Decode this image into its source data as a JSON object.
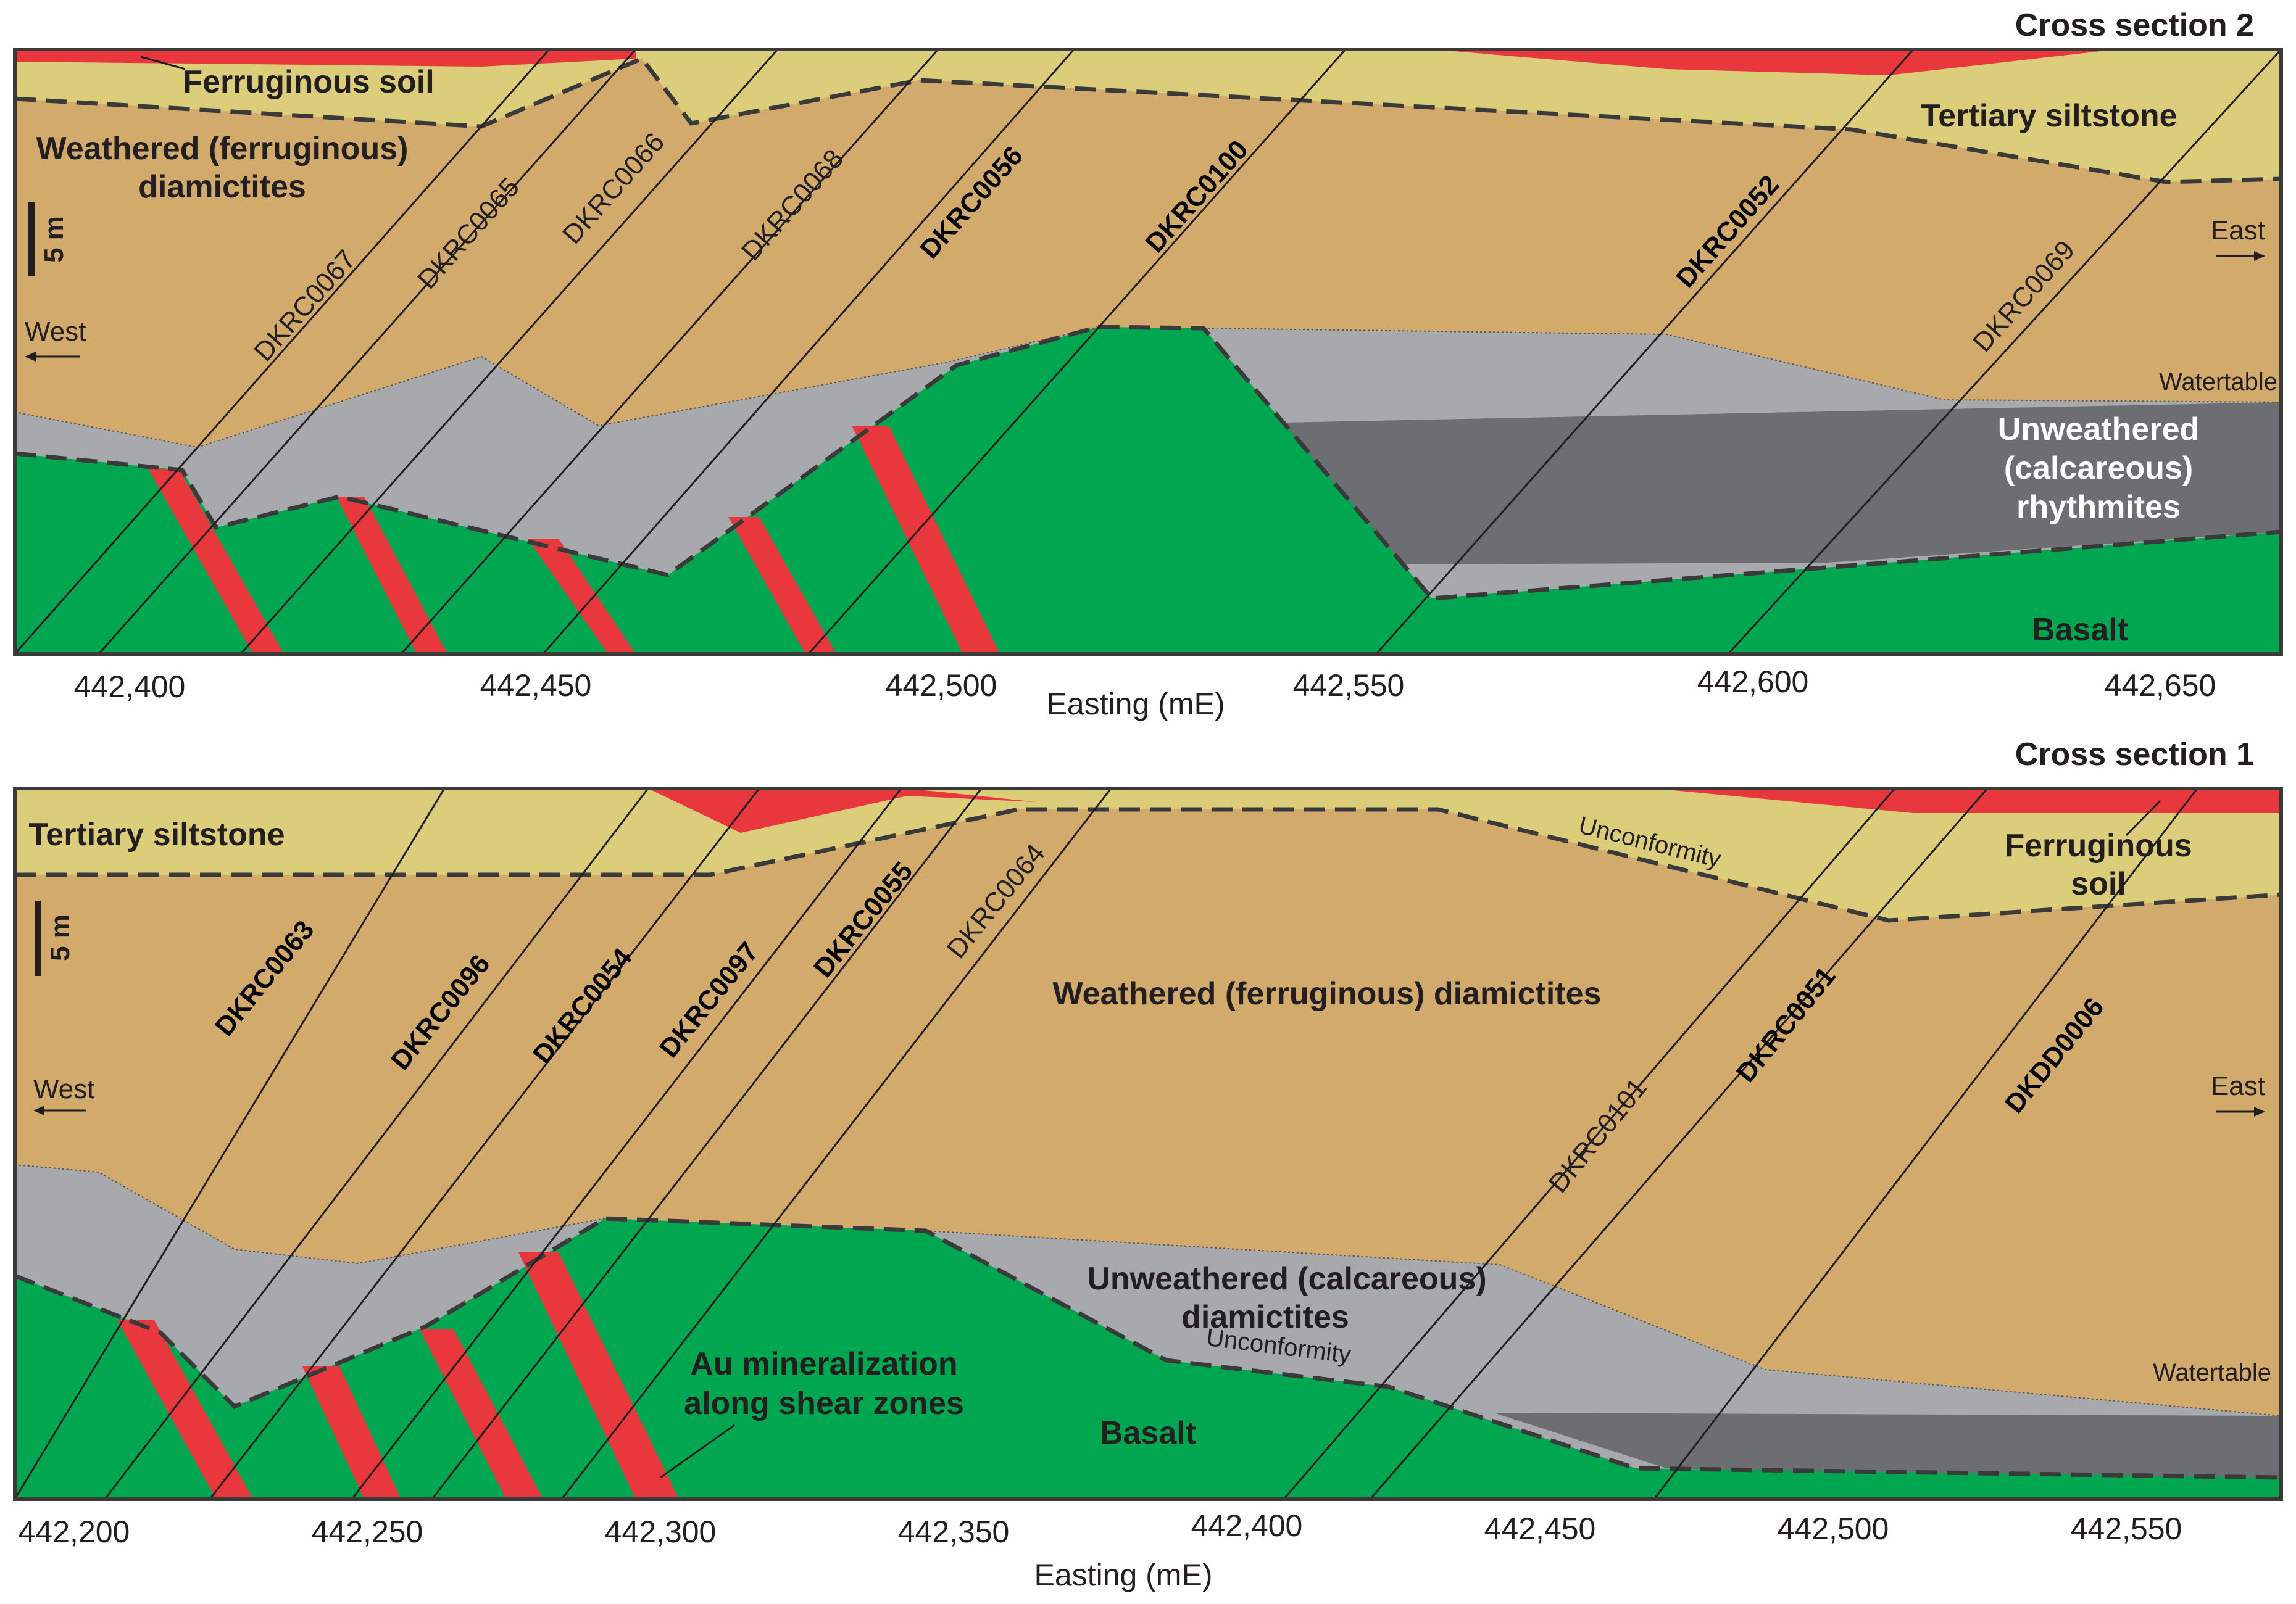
{
  "section2": {
    "title": "Cross section 2",
    "xaxis": {
      "label": "Easting (mE)",
      "ticks": [
        "442,400",
        "442,450",
        "442,500",
        "442,550",
        "442,600",
        "442,650"
      ]
    },
    "west": "West",
    "east": "East",
    "scale": "5 m",
    "units": {
      "ferruginous_soil": "Ferruginous soil",
      "tertiary_siltstone": "Tertiary siltstone",
      "weathered_1": "Weathered (ferruginous)",
      "weathered_2": "diamictites",
      "watertable": "Watertable",
      "unweathered_1": "Unweathered",
      "unweathered_2": "(calcareous)",
      "unweathered_3": "rhythmites",
      "basalt": "Basalt"
    },
    "drillholes": [
      "DKRC0067",
      "DKRC0065",
      "DKRC0066",
      "DKRC0068",
      "DKRC0056",
      "DKRC0100",
      "DKRC0052",
      "DKRC0069"
    ]
  },
  "section1": {
    "title": "Cross section 1",
    "xaxis": {
      "label": "Easting (mE)",
      "ticks": [
        "442,200",
        "442,250",
        "442,300",
        "442,350",
        "442,400",
        "442,450",
        "442,500",
        "442,550"
      ]
    },
    "west": "West",
    "east": "East",
    "scale": "5 m",
    "units": {
      "tertiary_siltstone": "Tertiary siltstone",
      "unconformity_top": "Unconformity",
      "ferruginous_soil_1": "Ferruginous",
      "ferruginous_soil_2": "soil",
      "weathered": "Weathered (ferruginous) diamictites",
      "unweathered_1": "Unweathered (calcareous)",
      "unweathered_2": "diamictites",
      "unconformity_bottom": "Unconformity",
      "au_1": "Au mineralization",
      "au_2": "along shear zones",
      "basalt": "Basalt",
      "watertable": "Watertable"
    },
    "drillholes": [
      "DKRC0063",
      "DKRC0096",
      "DKRC0054",
      "DKRC0097",
      "DKRC0055",
      "DKRC0064",
      "DKRC0101",
      "DKRC0051",
      "DKDD0006"
    ]
  },
  "colors": {
    "soil": "#e8383d",
    "siltstone": "#dccd7b",
    "weathered": "#d1aa6c",
    "unweathered": "#a7a9ac",
    "rhythmite": "#6d6e71",
    "basalt": "#00a650"
  }
}
